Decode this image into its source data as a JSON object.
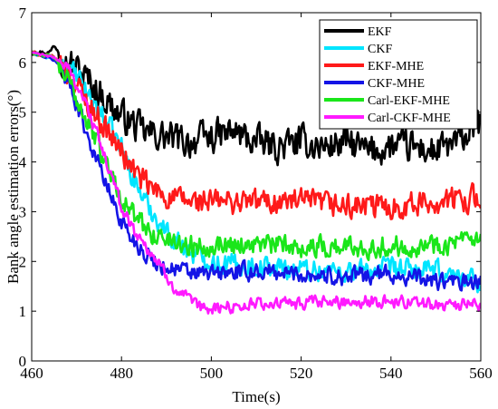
{
  "chart_data": {
    "type": "line",
    "xlabel": "Time(s)",
    "ylabel": "Bank angle estimation errors(°)",
    "xlim": [
      460,
      560
    ],
    "ylim": [
      0,
      7
    ],
    "xticks": [
      "460",
      "480",
      "500",
      "520",
      "540",
      "560"
    ],
    "yticks": [
      "0",
      "1",
      "2",
      "3",
      "4",
      "5",
      "6",
      "7"
    ],
    "grid": false,
    "legend_position": "top-right",
    "series": [
      {
        "name": "EKF",
        "color": "#000000",
        "x": [
          460,
          464,
          465,
          468,
          470,
          473,
          476,
          479,
          482,
          485,
          490,
          495,
          500,
          505,
          510,
          515,
          520,
          525,
          530,
          535,
          540,
          545,
          550,
          555,
          560
        ],
        "y": [
          6.2,
          6.2,
          6.35,
          6.0,
          5.9,
          5.6,
          5.3,
          5.0,
          4.8,
          4.6,
          4.5,
          4.4,
          4.5,
          4.6,
          4.4,
          4.3,
          4.4,
          4.3,
          4.4,
          4.2,
          4.3,
          4.3,
          4.2,
          4.4,
          4.8
        ],
        "noise": 0.45
      },
      {
        "name": "CKF",
        "color": "#00e5ff",
        "x": [
          460,
          465,
          468,
          470,
          473,
          476,
          480,
          483,
          486,
          490,
          495,
          500,
          510,
          520,
          530,
          540,
          550,
          560
        ],
        "y": [
          6.2,
          6.05,
          5.9,
          5.7,
          5.3,
          4.9,
          4.3,
          3.6,
          3.1,
          2.6,
          2.2,
          2.0,
          1.9,
          1.85,
          1.8,
          1.85,
          1.8,
          1.6
        ],
        "noise": 0.3
      },
      {
        "name": "EKF-MHE",
        "color": "#ff1a1a",
        "x": [
          460,
          465,
          468,
          471,
          474,
          477,
          480,
          483,
          486,
          490,
          495,
          500,
          510,
          520,
          530,
          540,
          550,
          560
        ],
        "y": [
          6.2,
          6.1,
          5.8,
          5.4,
          5.0,
          4.6,
          4.2,
          3.8,
          3.5,
          3.3,
          3.2,
          3.2,
          3.2,
          3.2,
          3.1,
          3.1,
          3.2,
          3.3
        ],
        "noise": 0.35
      },
      {
        "name": "CKF-MHE",
        "color": "#1414e6",
        "x": [
          460,
          465,
          467,
          470,
          473,
          476,
          479,
          482,
          485,
          488,
          492,
          496,
          500,
          510,
          520,
          530,
          540,
          550,
          560
        ],
        "y": [
          6.2,
          6.05,
          5.85,
          5.2,
          4.4,
          3.7,
          3.0,
          2.5,
          2.2,
          1.95,
          1.85,
          1.75,
          1.75,
          1.8,
          1.75,
          1.7,
          1.75,
          1.6,
          1.55
        ],
        "noise": 0.25
      },
      {
        "name": "Carl-EKF-MHE",
        "color": "#1ae61a",
        "x": [
          460,
          465,
          467,
          470,
          473,
          476,
          479,
          482,
          485,
          488,
          492,
          496,
          500,
          510,
          520,
          530,
          540,
          550,
          560
        ],
        "y": [
          6.2,
          6.1,
          5.8,
          5.3,
          4.7,
          4.1,
          3.5,
          3.0,
          2.7,
          2.5,
          2.4,
          2.3,
          2.35,
          2.35,
          2.3,
          2.3,
          2.3,
          2.35,
          2.4
        ],
        "noise": 0.3
      },
      {
        "name": "Carl-CKF-MHE",
        "color": "#ff1aff",
        "x": [
          460,
          465,
          468,
          471,
          474,
          477,
          480,
          483,
          486,
          489,
          492,
          495,
          498,
          500,
          505,
          510,
          520,
          530,
          540,
          550,
          560
        ],
        "y": [
          6.2,
          6.1,
          5.9,
          5.4,
          4.7,
          3.9,
          3.1,
          2.6,
          2.25,
          1.85,
          1.45,
          1.2,
          1.05,
          1.05,
          1.1,
          1.15,
          1.15,
          1.2,
          1.2,
          1.15,
          1.1
        ],
        "noise": 0.18
      }
    ]
  }
}
